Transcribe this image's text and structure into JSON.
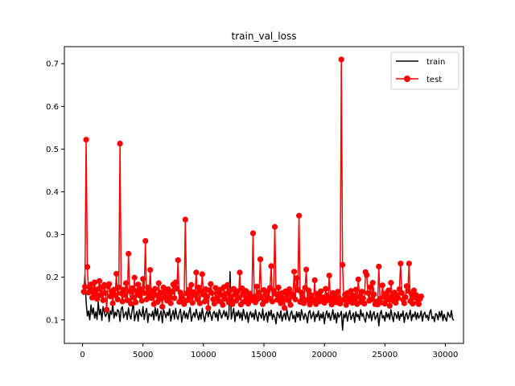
{
  "chart_data": {
    "type": "line",
    "title": "train_val_loss",
    "xlabel": "",
    "ylabel": "",
    "xlim": [
      -1500,
      31500
    ],
    "ylim": [
      0.045,
      0.74
    ],
    "x_ticks": [
      0,
      5000,
      10000,
      15000,
      20000,
      25000,
      30000
    ],
    "y_ticks": [
      0.1,
      0.2,
      0.3,
      0.4,
      0.5,
      0.6,
      0.7
    ],
    "x_tick_labels": [
      "0",
      "5000",
      "10000",
      "15000",
      "20000",
      "25000",
      "30000"
    ],
    "y_tick_labels": [
      "0.1",
      "0.2",
      "0.3",
      "0.4",
      "0.5",
      "0.6",
      "0.7"
    ],
    "grid": false,
    "legend_position": "top-right",
    "x_start": 100,
    "x_step": 100,
    "series": [
      {
        "name": "train",
        "color": "#000000",
        "marker": "none",
        "values": [
          0.158,
          0.205,
          0.141,
          0.109,
          0.121,
          0.1,
          0.135,
          0.113,
          0.128,
          0.104,
          0.119,
          0.101,
          0.142,
          0.112,
          0.125,
          0.099,
          0.131,
          0.118,
          0.108,
          0.114,
          0.127,
          0.096,
          0.121,
          0.113,
          0.137,
          0.104,
          0.118,
          0.109,
          0.124,
          0.12,
          0.096,
          0.126,
          0.131,
          0.105,
          0.113,
          0.119,
          0.101,
          0.128,
          0.111,
          0.102,
          0.123,
          0.14,
          0.098,
          0.111,
          0.12,
          0.097,
          0.124,
          0.112,
          0.108,
          0.131,
          0.101,
          0.118,
          0.127,
          0.094,
          0.115,
          0.112,
          0.108,
          0.12,
          0.1,
          0.129,
          0.109,
          0.126,
          0.098,
          0.112,
          0.121,
          0.093,
          0.124,
          0.116,
          0.105,
          0.118,
          0.11,
          0.126,
          0.097,
          0.112,
          0.122,
          0.102,
          0.127,
          0.108,
          0.101,
          0.117,
          0.125,
          0.095,
          0.11,
          0.121,
          0.104,
          0.116,
          0.102,
          0.118,
          0.129,
          0.097,
          0.109,
          0.117,
          0.106,
          0.125,
          0.112,
          0.1,
          0.118,
          0.102,
          0.127,
          0.109,
          0.096,
          0.114,
          0.121,
          0.107,
          0.123,
          0.111,
          0.099,
          0.116,
          0.12,
          0.106,
          0.117,
          0.098,
          0.124,
          0.115,
          0.104,
          0.113,
          0.122,
          0.108,
          0.119,
          0.101,
          0.11,
          0.213,
          0.102,
          0.115,
          0.127,
          0.096,
          0.118,
          0.109,
          0.122,
          0.104,
          0.117,
          0.099,
          0.125,
          0.111,
          0.102,
          0.118,
          0.094,
          0.113,
          0.119,
          0.106,
          0.116,
          0.101,
          0.124,
          0.108,
          0.097,
          0.118,
          0.112,
          0.104,
          0.126,
          0.099,
          0.111,
          0.117,
          0.095,
          0.12,
          0.109,
          0.123,
          0.101,
          0.114,
          0.106,
          0.091,
          0.118,
          0.112,
          0.104,
          0.121,
          0.097,
          0.109,
          0.116,
          0.101,
          0.124,
          0.107,
          0.098,
          0.115,
          0.121,
          0.103,
          0.111,
          0.095,
          0.119,
          0.106,
          0.118,
          0.099,
          0.124,
          0.112,
          0.101,
          0.115,
          0.108,
          0.093,
          0.117,
          0.122,
          0.103,
          0.11,
          0.119,
          0.096,
          0.113,
          0.107,
          0.121,
          0.099,
          0.114,
          0.104,
          0.118,
          0.091,
          0.112,
          0.121,
          0.105,
          0.116,
          0.099,
          0.109,
          0.124,
          0.101,
          0.115,
          0.093,
          0.117,
          0.106,
          0.112,
          0.12,
          0.076,
          0.114,
          0.105,
          0.118,
          0.097,
          0.112,
          0.122,
          0.101,
          0.109,
          0.116,
          0.094,
          0.119,
          0.107,
          0.113,
          0.099,
          0.124,
          0.108,
          0.115,
          0.102,
          0.095,
          0.118,
          0.111,
          0.104,
          0.121,
          0.098,
          0.112,
          0.119,
          0.101,
          0.108,
          0.116,
          0.086,
          0.113,
          0.122,
          0.104,
          0.11,
          0.097,
          0.118,
          0.106,
          0.115,
          0.101,
          0.124,
          0.109,
          0.096,
          0.117,
          0.112,
          0.103,
          0.119,
          0.099,
          0.114,
          0.108,
          0.121,
          0.094,
          0.111,
          0.117,
          0.102,
          0.11,
          0.123,
          0.098,
          0.113,
          0.107,
          0.119,
          0.101,
          0.116,
          0.104,
          0.109,
          0.121,
          0.097,
          0.113,
          0.118,
          0.105,
          0.111,
          0.099,
          0.117,
          0.124,
          0.103,
          0.108,
          0.096,
          0.115,
          0.112,
          0.1,
          0.119,
          0.107,
          0.121,
          0.098,
          0.113,
          0.104,
          0.097,
          0.118,
          0.111,
          0.106,
          0.122,
          0.102,
          0.099
        ]
      },
      {
        "name": "test",
        "color": "#ff0000",
        "marker": "circle",
        "values": [
          0.166,
          0.178,
          0.522,
          0.224,
          0.164,
          0.175,
          0.183,
          0.152,
          0.17,
          0.188,
          0.161,
          0.149,
          0.172,
          0.191,
          0.158,
          0.177,
          0.146,
          0.182,
          0.163,
          0.124,
          0.178,
          0.184,
          0.155,
          0.167,
          0.139,
          0.171,
          0.158,
          0.208,
          0.148,
          0.176,
          0.513,
          0.162,
          0.143,
          0.171,
          0.158,
          0.186,
          0.146,
          0.255,
          0.167,
          0.138,
          0.174,
          0.152,
          0.199,
          0.141,
          0.168,
          0.183,
          0.157,
          0.172,
          0.145,
          0.196,
          0.163,
          0.285,
          0.148,
          0.176,
          0.159,
          0.217,
          0.151,
          0.168,
          0.137,
          0.173,
          0.158,
          0.142,
          0.186,
          0.149,
          0.164,
          0.131,
          0.176,
          0.153,
          0.168,
          0.145,
          0.172,
          0.156,
          0.139,
          0.166,
          0.183,
          0.151,
          0.188,
          0.173,
          0.24,
          0.142,
          0.164,
          0.155,
          0.149,
          0.137,
          0.335,
          0.162,
          0.146,
          0.171,
          0.153,
          0.182,
          0.14,
          0.165,
          0.158,
          0.211,
          0.148,
          0.176,
          0.139,
          0.167,
          0.207,
          0.159,
          0.143,
          0.172,
          0.155,
          0.128,
          0.169,
          0.184,
          0.163,
          0.148,
          0.138,
          0.175,
          0.151,
          0.166,
          0.144,
          0.171,
          0.158,
          0.135,
          0.177,
          0.149,
          0.161,
          0.182,
          0.141,
          0.169,
          0.154,
          0.137,
          0.173,
          0.16,
          0.145,
          0.167,
          0.152,
          0.211,
          0.136,
          0.174,
          0.159,
          0.143,
          0.168,
          0.15,
          0.138,
          0.162,
          0.157,
          0.146,
          0.303,
          0.155,
          0.141,
          0.178,
          0.149,
          0.164,
          0.242,
          0.152,
          0.137,
          0.17,
          0.158,
          0.145,
          0.166,
          0.151,
          0.175,
          0.226,
          0.143,
          0.168,
          0.318,
          0.16,
          0.147,
          0.176,
          0.154,
          0.139,
          0.163,
          0.15,
          0.128,
          0.167,
          0.158,
          0.146,
          0.172,
          0.135,
          0.161,
          0.155,
          0.213,
          0.148,
          0.198,
          0.17,
          0.344,
          0.142,
          0.164,
          0.153,
          0.139,
          0.175,
          0.218,
          0.147,
          0.169,
          0.136,
          0.158,
          0.15,
          0.145,
          0.193,
          0.137,
          0.161,
          0.154,
          0.143,
          0.167,
          0.148,
          0.153,
          0.14,
          0.173,
          0.157,
          0.146,
          0.204,
          0.151,
          0.136,
          0.163,
          0.148,
          0.158,
          0.141,
          0.166,
          0.152,
          0.138,
          0.71,
          0.229,
          0.147,
          0.159,
          0.135,
          0.163,
          0.151,
          0.144,
          0.168,
          0.14,
          0.157,
          0.149,
          0.171,
          0.137,
          0.195,
          0.154,
          0.142,
          0.166,
          0.15,
          0.138,
          0.212,
          0.205,
          0.163,
          0.145,
          0.177,
          0.148,
          0.187,
          0.16,
          0.137,
          0.143,
          0.136,
          0.225,
          0.149,
          0.141,
          0.181,
          0.155,
          0.138,
          0.162,
          0.147,
          0.169,
          0.133,
          0.187,
          0.154,
          0.144,
          0.164,
          0.14,
          0.158,
          0.151,
          0.172,
          0.232,
          0.163,
          0.147,
          0.139,
          0.153,
          0.179,
          0.168,
          0.232,
          0.144,
          0.161,
          0.138,
          0.169,
          0.152,
          0.158,
          0.141,
          0.137,
          0.149,
          0.155
        ]
      }
    ]
  }
}
